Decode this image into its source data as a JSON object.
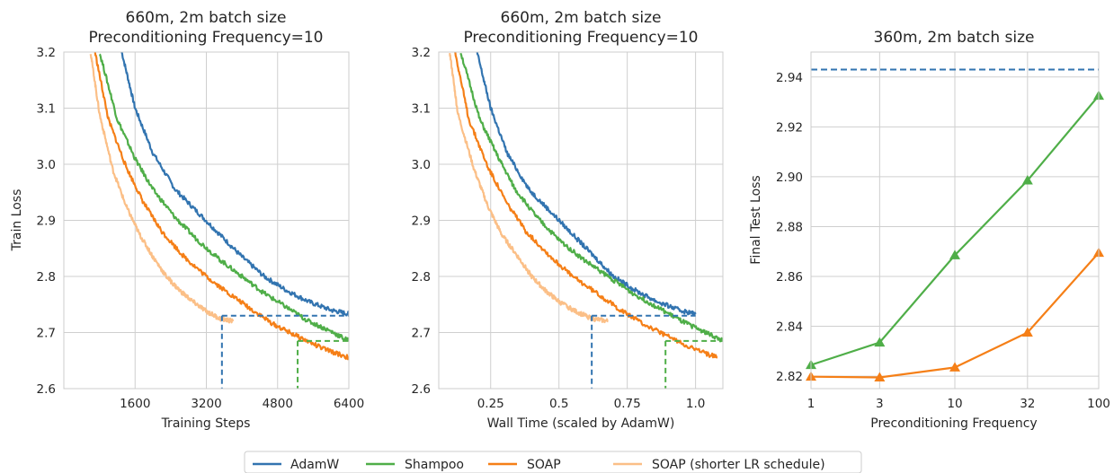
{
  "colors": {
    "adamw": "#3274b0",
    "shampoo": "#4fae48",
    "soap": "#f57f17",
    "soap_short": "#fbbf87",
    "grid": "#cfcfcf"
  },
  "legend": {
    "items": [
      {
        "label": "AdamW",
        "color": "#3274b0"
      },
      {
        "label": "Shampoo",
        "color": "#4fae48"
      },
      {
        "label": "SOAP",
        "color": "#f57f17"
      },
      {
        "label": "SOAP (shorter LR schedule)",
        "color": "#fbbf87"
      }
    ]
  },
  "chart_data": [
    {
      "type": "line",
      "title": [
        "660m, 2m batch size",
        "Preconditioning Frequency=10"
      ],
      "xlabel": "Training Steps",
      "ylabel": "Train Loss",
      "xlim": [
        0,
        6400
      ],
      "ylim": [
        2.6,
        3.2
      ],
      "xticks": [
        1600,
        3200,
        4800,
        6400
      ],
      "xtick_labels": [
        "1600",
        "3200",
        "4800",
        "6400"
      ],
      "yticks": [
        2.6,
        2.7,
        2.8,
        2.9,
        3.0,
        3.1,
        3.2
      ],
      "ytick_labels": [
        "2.6",
        "2.7",
        "2.8",
        "2.9",
        "3.0",
        "3.1",
        "3.2"
      ],
      "grid": true,
      "series": [
        {
          "name": "AdamW",
          "color": "#3274b0",
          "x": [
            1300,
            1600,
            2000,
            2500,
            3000,
            3500,
            4000,
            4500,
            5000,
            5500,
            6000,
            6400
          ],
          "y": [
            3.2,
            3.1,
            3.02,
            2.955,
            2.915,
            2.875,
            2.835,
            2.8,
            2.775,
            2.755,
            2.74,
            2.733
          ]
        },
        {
          "name": "Shampoo",
          "color": "#4fae48",
          "x": [
            800,
            1200,
            1600,
            2000,
            2500,
            3000,
            3500,
            4000,
            4500,
            5000,
            5500,
            6000,
            6400
          ],
          "y": [
            3.2,
            3.08,
            3.01,
            2.955,
            2.905,
            2.865,
            2.83,
            2.8,
            2.77,
            2.745,
            2.72,
            2.702,
            2.685
          ]
        },
        {
          "name": "SOAP",
          "color": "#f57f17",
          "x": [
            700,
            1000,
            1400,
            1800,
            2200,
            2700,
            3200,
            3700,
            4200,
            4700,
            5200,
            5800,
            6400
          ],
          "y": [
            3.2,
            3.08,
            2.995,
            2.93,
            2.88,
            2.835,
            2.8,
            2.77,
            2.742,
            2.715,
            2.695,
            2.672,
            2.655
          ]
        },
        {
          "name": "SOAP (shorter LR schedule)",
          "color": "#fbbf87",
          "x": [
            600,
            800,
            1100,
            1400,
            1700,
            2000,
            2300,
            2600,
            2900,
            3200,
            3500,
            3800
          ],
          "y": [
            3.2,
            3.09,
            2.99,
            2.925,
            2.875,
            2.835,
            2.8,
            2.775,
            2.755,
            2.738,
            2.725,
            2.72
          ]
        }
      ],
      "reference_lines": [
        {
          "color": "#3274b0",
          "y": 2.73,
          "x_from": 3550,
          "x_to": 6400,
          "drop_x": 3550
        },
        {
          "color": "#4fae48",
          "y": 2.685,
          "x_from": 5250,
          "x_to": 6400,
          "drop_x": 5250
        }
      ]
    },
    {
      "type": "line",
      "title": [
        "660m, 2m batch size",
        "Preconditioning Frequency=10"
      ],
      "xlabel": "Wall Time (scaled by AdamW)",
      "ylabel": "",
      "xlim": [
        0.06,
        1.1
      ],
      "ylim": [
        2.6,
        3.2
      ],
      "xticks": [
        0.25,
        0.5,
        0.75,
        1.0
      ],
      "xtick_labels": [
        "0.25",
        "0.5",
        "0.75",
        "1.0"
      ],
      "yticks": [
        2.6,
        2.7,
        2.8,
        2.9,
        3.0,
        3.1,
        3.2
      ],
      "ytick_labels": [
        "2.6",
        "2.7",
        "2.8",
        "2.9",
        "3.0",
        "3.1",
        "3.2"
      ],
      "grid": true,
      "series": [
        {
          "name": "AdamW",
          "color": "#3274b0",
          "x": [
            0.2,
            0.25,
            0.31,
            0.39,
            0.47,
            0.55,
            0.63,
            0.7,
            0.78,
            0.86,
            0.94,
            1.0
          ],
          "y": [
            3.2,
            3.1,
            3.02,
            2.955,
            2.915,
            2.875,
            2.835,
            2.8,
            2.775,
            2.755,
            2.74,
            2.733
          ]
        },
        {
          "name": "Shampoo",
          "color": "#4fae48",
          "x": [
            0.14,
            0.21,
            0.28,
            0.34,
            0.42,
            0.5,
            0.59,
            0.68,
            0.77,
            0.86,
            0.95,
            1.03,
            1.1
          ],
          "y": [
            3.2,
            3.08,
            3.01,
            2.955,
            2.905,
            2.865,
            2.83,
            2.8,
            2.77,
            2.745,
            2.72,
            2.702,
            2.685
          ]
        },
        {
          "name": "SOAP",
          "color": "#f57f17",
          "x": [
            0.12,
            0.17,
            0.24,
            0.31,
            0.38,
            0.47,
            0.55,
            0.64,
            0.72,
            0.81,
            0.89,
            0.99,
            1.08
          ],
          "y": [
            3.2,
            3.08,
            2.995,
            2.93,
            2.88,
            2.835,
            2.8,
            2.77,
            2.742,
            2.715,
            2.695,
            2.672,
            2.655
          ]
        },
        {
          "name": "SOAP (shorter LR schedule)",
          "color": "#fbbf87",
          "x": [
            0.1,
            0.13,
            0.19,
            0.24,
            0.29,
            0.35,
            0.4,
            0.45,
            0.5,
            0.56,
            0.62,
            0.68
          ],
          "y": [
            3.2,
            3.09,
            2.99,
            2.925,
            2.875,
            2.835,
            2.8,
            2.775,
            2.755,
            2.738,
            2.725,
            2.72
          ]
        }
      ],
      "reference_lines": [
        {
          "color": "#3274b0",
          "y": 2.73,
          "x_from": 0.62,
          "x_to": 1.0,
          "drop_x": 0.62
        },
        {
          "color": "#4fae48",
          "y": 2.685,
          "x_from": 0.89,
          "x_to": 1.1,
          "drop_x": 0.89
        }
      ]
    },
    {
      "type": "line",
      "title": [
        "360m, 2m batch size"
      ],
      "xlabel": "Preconditioning Frequency",
      "ylabel": "Final Test Loss",
      "x_scale": "log",
      "xlim": [
        1,
        100
      ],
      "ylim": [
        2.815,
        2.95
      ],
      "xticks": [
        1,
        3,
        10,
        32,
        100
      ],
      "xtick_labels": [
        "1",
        "3",
        "10",
        "32",
        "100"
      ],
      "yticks": [
        2.82,
        2.84,
        2.86,
        2.88,
        2.9,
        2.92,
        2.94
      ],
      "ytick_labels": [
        "2.82",
        "2.84",
        "2.86",
        "2.88",
        "2.90",
        "2.92",
        "2.94"
      ],
      "grid": true,
      "series": [
        {
          "name": "Shampoo",
          "color": "#4fae48",
          "marker": "triangle",
          "x": [
            1,
            3,
            10,
            32,
            100
          ],
          "y": [
            2.8245,
            2.8335,
            2.8685,
            2.8985,
            2.9325
          ]
        },
        {
          "name": "SOAP",
          "color": "#f57f17",
          "marker": "triangle",
          "x": [
            1,
            3,
            10,
            32,
            100
          ],
          "y": [
            2.8198,
            2.8195,
            2.8235,
            2.8375,
            2.8695
          ]
        }
      ],
      "hlines": [
        {
          "name": "AdamW",
          "color": "#3274b0",
          "y": 2.943,
          "style": "dashed"
        }
      ]
    }
  ]
}
